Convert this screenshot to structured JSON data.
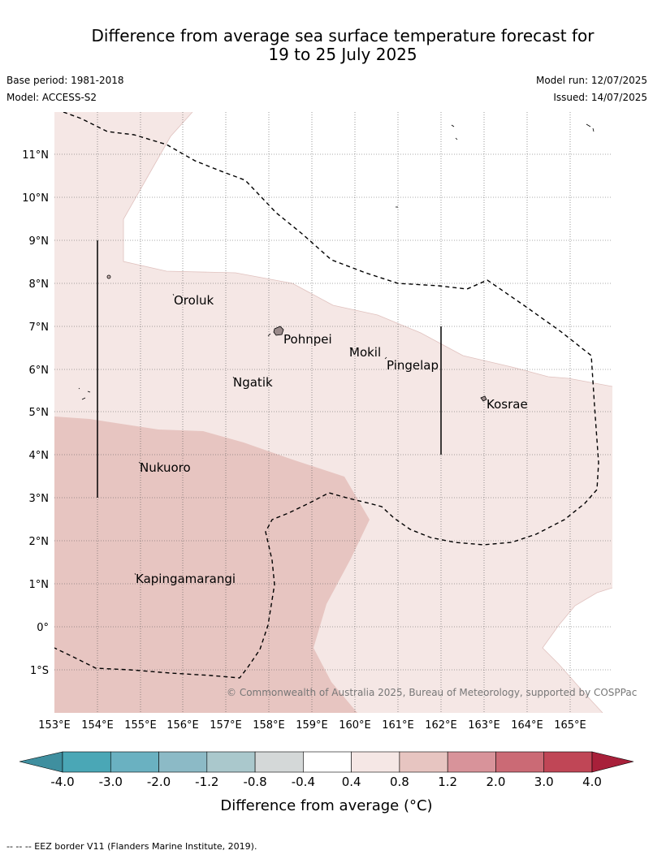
{
  "title_line1": "Difference from average sea surface temperature forecast for",
  "title_line2": "19 to 25 July 2025",
  "base_period": "Base period: 1981-2018",
  "model": "Model: ACCESS-S2",
  "model_run": "Model run: 12/07/2025",
  "issued": "Issued: 14/07/2025",
  "copyright": "© Commonwealth of Australia 2025, Bureau of Meteorology, supported by COSPPac",
  "lat_labels": [
    "11°N",
    "10°N",
    "9°N",
    "8°N",
    "7°N",
    "6°N",
    "5°N",
    "4°N",
    "3°N",
    "2°N",
    "1°N",
    "0°",
    "1°S"
  ],
  "lon_labels": [
    "153°E",
    "154°E",
    "155°E",
    "156°E",
    "157°E",
    "158°E",
    "159°E",
    "160°E",
    "161°E",
    "162°E",
    "163°E",
    "164°E",
    "165°E"
  ],
  "places": [
    {
      "name": "Oroluk"
    },
    {
      "name": "Pohnpei"
    },
    {
      "name": "Mokil"
    },
    {
      "name": "Pingelap"
    },
    {
      "name": "Ngatik"
    },
    {
      "name": "Kosrae"
    },
    {
      "name": "Nukuoro"
    },
    {
      "name": "Kapingamarangi"
    }
  ],
  "colorbar": {
    "ticks": [
      "-4.0",
      "-3.0",
      "-2.0",
      "-1.2",
      "-0.8",
      "-0.4",
      "0.4",
      "0.8",
      "1.2",
      "2.0",
      "3.0",
      "4.0"
    ],
    "colors": [
      "#3f8f9f",
      "#4aa7b6",
      "#6ab1c1",
      "#8cbac6",
      "#aac8cc",
      "#d4d8d8",
      "#ffffff",
      "#f5e7e5",
      "#e7c5c1",
      "#d8939a",
      "#cb6a75",
      "#c04656",
      "#a8203a"
    ],
    "label": "Difference from average (°C)"
  },
  "footnote": "-- -- -- EEZ border V11 (Flanders Marine Institute, 2019)."
}
